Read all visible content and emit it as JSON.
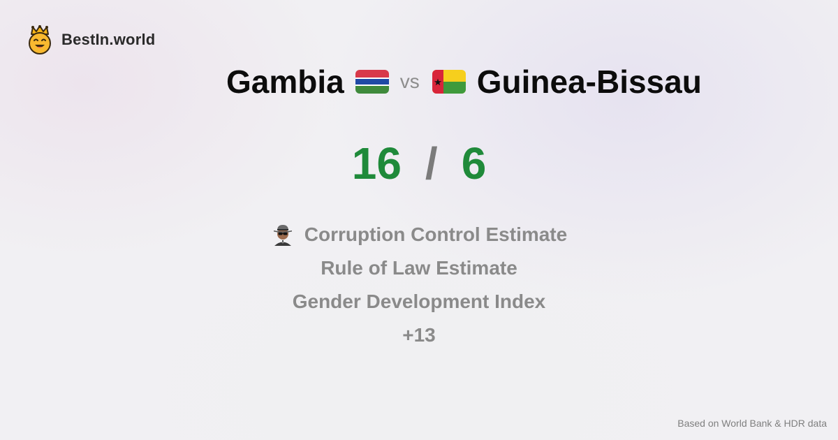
{
  "brand": {
    "name": "BestIn.world",
    "logo_icon": "crowned-smiley-icon"
  },
  "comparison": {
    "left_country": "Gambia",
    "left_flag_icon": "gambia-flag-icon",
    "vs_label": "vs",
    "right_country": "Guinea-Bissau",
    "right_flag_icon": "guinea-bissau-flag-icon"
  },
  "score": {
    "left": "16",
    "separator": "/",
    "right": "6"
  },
  "metrics": {
    "items": [
      {
        "icon": "spy-icon",
        "label": "Corruption Control Estimate"
      },
      {
        "label": "Rule of Law Estimate"
      },
      {
        "label": "Gender Development Index"
      }
    ],
    "more_label": "+13"
  },
  "footer": {
    "source": "Based on World Bank & HDR data"
  },
  "colors": {
    "score_green": "#1f8a3a",
    "muted_text": "#8a8a8a",
    "title_text": "#0c0c0c"
  }
}
